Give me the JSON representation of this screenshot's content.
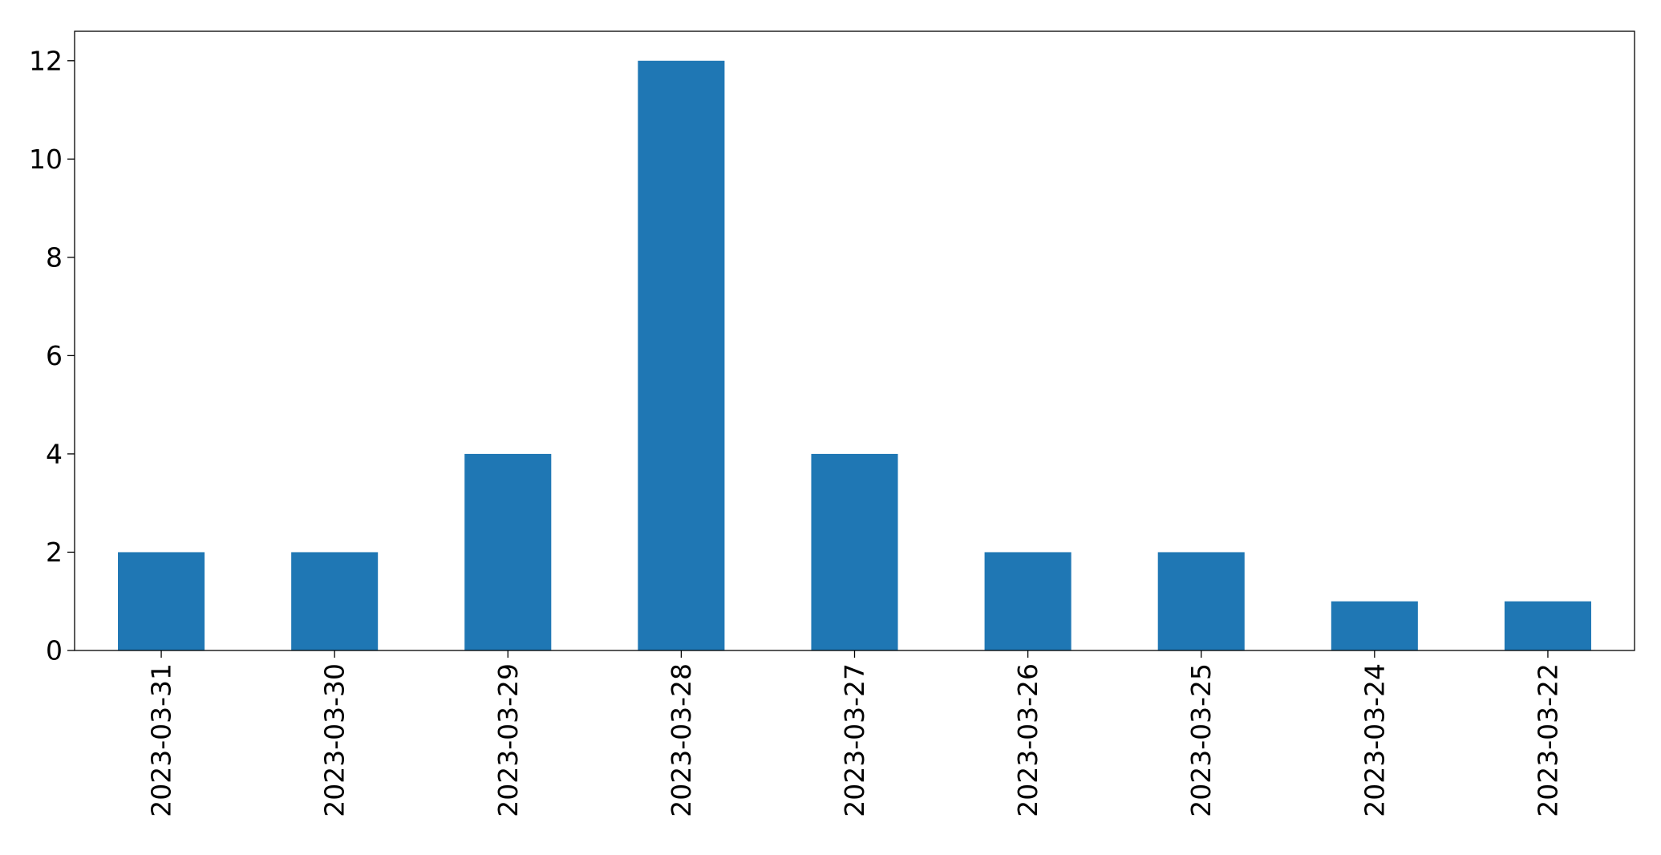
{
  "chart_data": {
    "type": "bar",
    "title": "",
    "xlabel": "",
    "ylabel": "",
    "categories": [
      "2023-03-31",
      "2023-03-30",
      "2023-03-29",
      "2023-03-28",
      "2023-03-27",
      "2023-03-26",
      "2023-03-25",
      "2023-03-24",
      "2023-03-22"
    ],
    "values": [
      2,
      2,
      4,
      12,
      4,
      2,
      2,
      1,
      1
    ],
    "ylim": [
      0,
      12.6
    ],
    "yticks": [
      0,
      2,
      4,
      6,
      8,
      10,
      12
    ],
    "grid": false,
    "bar_color": "#1f77b4"
  }
}
